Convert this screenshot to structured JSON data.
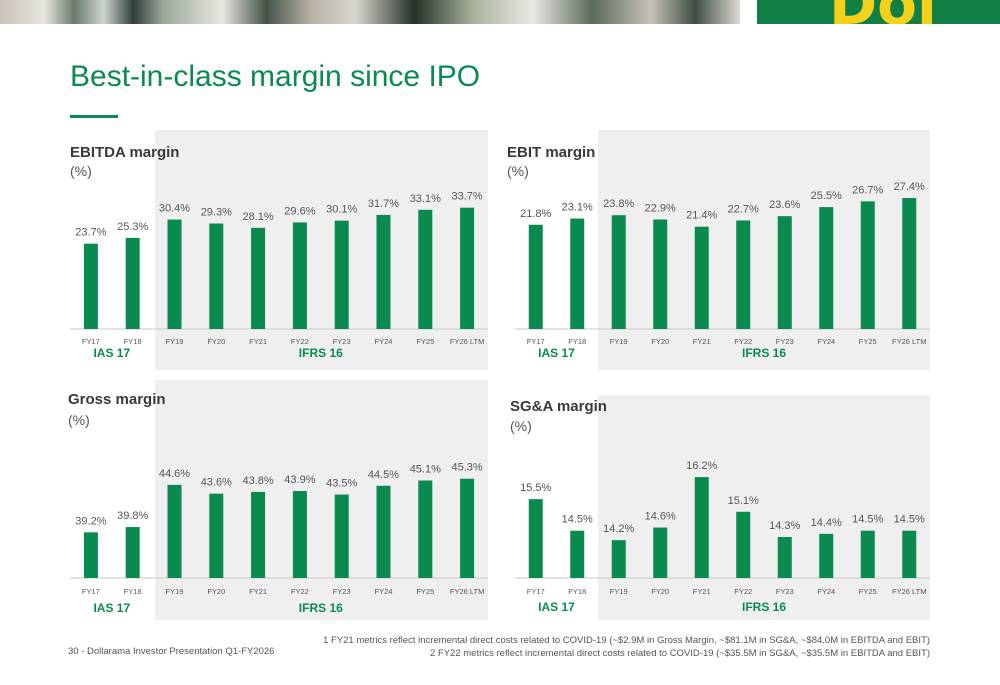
{
  "page": {
    "title": "Best-in-class margin since IPO",
    "footer": "30 - Dollarama Investor Presentation Q1-FY2026",
    "footnotes": [
      "1 FY21 metrics reflect incremental direct costs related to COVID-19 (~$2.9M in Gross Margin, ~$81.1M in SG&A, ~$84.0M in EBITDA and EBIT)",
      "2 FY22 metrics reflect incremental direct costs related to COVID-19 (~$35.5M in SG&A, ~$35.5M in EBITDA and EBIT)"
    ],
    "colors": {
      "brand_green": "#0b8a4f",
      "bar_green": "#0b8a4f",
      "shade_gray": "#efefef",
      "logo_yellow": "#f4d21c"
    },
    "logo_text": "Dol"
  },
  "chart_data": [
    {
      "type": "bar",
      "title": "EBITDA margin",
      "subtitle": "(%)",
      "categories": [
        "FY17",
        "FY18",
        "FY19",
        "FY20",
        "FY21",
        "FY22",
        "FY23",
        "FY24",
        "FY25",
        "FY26 LTM"
      ],
      "values": [
        23.7,
        25.3,
        30.4,
        29.3,
        28.1,
        29.6,
        30.1,
        31.7,
        33.1,
        33.7
      ],
      "labels": [
        "23.7%",
        "25.3%",
        "30.4%",
        "29.3%",
        "28.1%",
        "29.6%",
        "30.1%",
        "31.7%",
        "33.1%",
        "33.7%"
      ],
      "periods": [
        {
          "label": "IAS 17",
          "categories": [
            "FY17",
            "FY18"
          ]
        },
        {
          "label": "IFRS 16",
          "categories": [
            "FY19",
            "FY20",
            "FY21",
            "FY22",
            "FY23",
            "FY24",
            "FY25",
            "FY26 LTM"
          ]
        }
      ],
      "ylim": [
        0,
        40
      ]
    },
    {
      "type": "bar",
      "title": "EBIT margin",
      "subtitle": "(%)",
      "categories": [
        "FY17",
        "FY18",
        "FY19",
        "FY20",
        "FY21",
        "FY22",
        "FY23",
        "FY24",
        "FY25",
        "FY26 LTM"
      ],
      "values": [
        21.8,
        23.1,
        23.8,
        22.9,
        21.4,
        22.7,
        23.6,
        25.5,
        26.7,
        27.4
      ],
      "labels": [
        "21.8%",
        "23.1%",
        "23.8%",
        "22.9%",
        "21.4%",
        "22.7%",
        "23.6%",
        "25.5%",
        "26.7%",
        "27.4%"
      ],
      "periods": [
        {
          "label": "IAS 17",
          "categories": [
            "FY17",
            "FY18"
          ]
        },
        {
          "label": "IFRS 16",
          "categories": [
            "FY19",
            "FY20",
            "FY21",
            "FY22",
            "FY23",
            "FY24",
            "FY25",
            "FY26 LTM"
          ]
        }
      ],
      "ylim": [
        0,
        32
      ]
    },
    {
      "type": "bar",
      "title": "Gross margin",
      "subtitle": "(%)",
      "categories": [
        "FY17",
        "FY18",
        "FY19",
        "FY20",
        "FY21",
        "FY22",
        "FY23",
        "FY24",
        "FY25",
        "FY26 LTM"
      ],
      "values": [
        39.2,
        39.8,
        44.6,
        43.6,
        43.8,
        43.9,
        43.5,
        44.5,
        45.1,
        45.3
      ],
      "labels": [
        "39.2%",
        "39.8%",
        "44.6%",
        "43.6%",
        "43.8%",
        "43.9%",
        "43.5%",
        "44.5%",
        "45.1%",
        "45.3%"
      ],
      "periods": [
        {
          "label": "IAS 17",
          "categories": [
            "FY17",
            "FY18"
          ]
        },
        {
          "label": "IFRS 16",
          "categories": [
            "FY19",
            "FY20",
            "FY21",
            "FY22",
            "FY23",
            "FY24",
            "FY25",
            "FY26 LTM"
          ]
        }
      ],
      "ylim": [
        34,
        48
      ]
    },
    {
      "type": "bar",
      "title": "SG&A margin",
      "subtitle": "(%)",
      "categories": [
        "FY17",
        "FY18",
        "FY19",
        "FY20",
        "FY21",
        "FY22",
        "FY23",
        "FY24",
        "FY25",
        "FY26 LTM"
      ],
      "values": [
        15.5,
        14.5,
        14.2,
        14.6,
        16.2,
        15.1,
        14.3,
        14.4,
        14.5,
        14.5
      ],
      "labels": [
        "15.5%",
        "14.5%",
        "14.2%",
        "14.6%",
        "16.2%",
        "15.1%",
        "14.3%",
        "14.4%",
        "14.5%",
        "14.5%"
      ],
      "periods": [
        {
          "label": "IAS 17",
          "categories": [
            "FY17",
            "FY18"
          ]
        },
        {
          "label": "IFRS 16",
          "categories": [
            "FY19",
            "FY20",
            "FY21",
            "FY22",
            "FY23",
            "FY24",
            "FY25",
            "FY26 LTM"
          ]
        }
      ],
      "ylim": [
        13.0,
        16.9
      ]
    }
  ]
}
